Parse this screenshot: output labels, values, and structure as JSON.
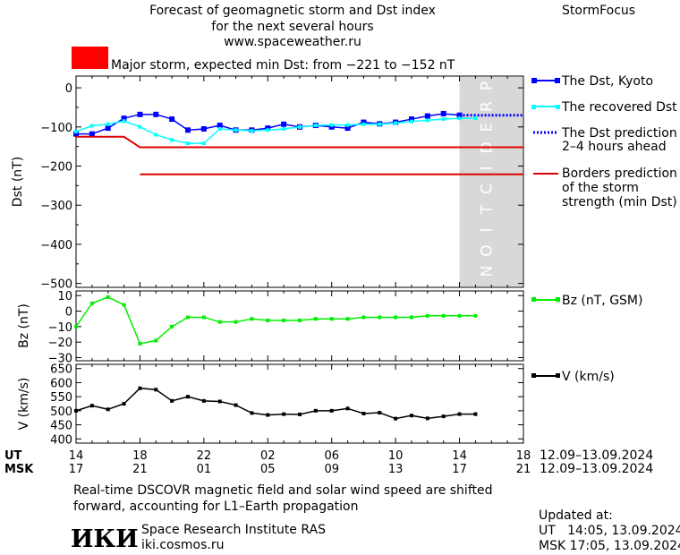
{
  "header": {
    "title_lines": [
      "Forecast of geomagnetic storm and Dst index",
      "for the next several hours",
      "www.spaceweather.ru"
    ],
    "brand": "StormFocus"
  },
  "storm_banner": {
    "color": "#ff0000",
    "text": "Major storm, expected min Dst: from −221 to −152 nT"
  },
  "colors": {
    "dst_kyoto": "#0000ff",
    "dst_recovered": "#00ffff",
    "dst_prediction": "#0000ff",
    "borders": "#e00000",
    "bz": "#00ee00",
    "v": "#000000",
    "prediction_band": "#d8d8d8"
  },
  "legend": {
    "dst_kyoto": "The Dst, Kyoto",
    "dst_recovered": "The recovered Dst",
    "dst_prediction": [
      "The Dst prediction",
      "2–4 hours ahead"
    ],
    "borders": [
      "Borders prediction",
      "of the storm",
      "strength (min Dst)"
    ],
    "bz": "Bz (nT, GSM)",
    "v": "V (km/s)"
  },
  "prediction_label": "PREDICTION",
  "axes": {
    "x_ut_label": "UT",
    "x_msk_label": "MSK",
    "x_ut_ticks": [
      "14",
      "18",
      "22",
      "02",
      "06",
      "10",
      "14",
      "18"
    ],
    "x_msk_ticks": [
      "17",
      "21",
      "01",
      "05",
      "09",
      "13",
      "17",
      "21"
    ],
    "date_range": "12.09–13.09.2024"
  },
  "chart_data": [
    {
      "type": "line",
      "panel": "dst",
      "ylabel": "Dst (nT)",
      "ylim": [
        -510,
        30
      ],
      "yticks": [
        0,
        -100,
        -200,
        -300,
        -400,
        -500
      ],
      "xlim": [
        14,
        42
      ],
      "x_unit": "hours UT from 14:00 12.09.2024",
      "prediction_start": 38,
      "series": [
        {
          "name": "The Dst, Kyoto",
          "x": [
            14,
            15,
            16,
            17,
            18,
            19,
            20,
            21,
            22,
            23,
            24,
            25,
            26,
            27,
            28,
            29,
            30,
            31,
            32,
            33,
            34,
            35,
            36,
            37,
            38
          ],
          "values": [
            -118,
            -118,
            -103,
            -78,
            -68,
            -68,
            -80,
            -108,
            -105,
            -96,
            -108,
            -108,
            -103,
            -93,
            -100,
            -96,
            -100,
            -103,
            -88,
            -92,
            -88,
            -80,
            -72,
            -66,
            -70
          ]
        },
        {
          "name": "The recovered Dst",
          "x": [
            14,
            15,
            16,
            17,
            18,
            19,
            20,
            21,
            22,
            23,
            24,
            25,
            26,
            27,
            28,
            29,
            30,
            31,
            32,
            33,
            34,
            35,
            36,
            37,
            38,
            39
          ],
          "values": [
            -112,
            -97,
            -93,
            -85,
            -100,
            -120,
            -133,
            -142,
            -142,
            -105,
            -108,
            -110,
            -108,
            -105,
            -100,
            -96,
            -95,
            -95,
            -93,
            -93,
            -90,
            -86,
            -83,
            -80,
            -78,
            -78
          ]
        },
        {
          "name": "The Dst prediction 2–4 hours ahead",
          "x": [
            38,
            42
          ],
          "values": [
            -70,
            -70
          ]
        },
        {
          "name": "Borders prediction (upper)",
          "x": [
            14,
            17,
            18,
            42
          ],
          "values": [
            -125,
            -125,
            -152,
            -152
          ]
        },
        {
          "name": "Borders prediction (lower)",
          "x": [
            18,
            42
          ],
          "values": [
            -221,
            -221
          ]
        }
      ]
    },
    {
      "type": "line",
      "panel": "bz",
      "ylabel": "Bz (nT)",
      "ylim": [
        -32,
        13
      ],
      "yticks": [
        10,
        0,
        -10,
        -20,
        -30
      ],
      "xlim": [
        14,
        42
      ],
      "series": [
        {
          "name": "Bz (nT, GSM)",
          "x": [
            14,
            15,
            16,
            17,
            18,
            19,
            20,
            21,
            22,
            23,
            24,
            25,
            26,
            27,
            28,
            29,
            30,
            31,
            32,
            33,
            34,
            35,
            36,
            37,
            38,
            39
          ],
          "values": [
            -10,
            5,
            9,
            4,
            -21,
            -19,
            -10,
            -4,
            -4,
            -7,
            -7,
            -5,
            -6,
            -6,
            -6,
            -5,
            -5,
            -5,
            -4,
            -4,
            -4,
            -4,
            -3,
            -3,
            -3,
            -3
          ]
        }
      ]
    },
    {
      "type": "line",
      "panel": "v",
      "ylabel": "V (km/s)",
      "ylim": [
        385,
        665
      ],
      "yticks": [
        650,
        600,
        550,
        500,
        450,
        400
      ],
      "xlim": [
        14,
        42
      ],
      "series": [
        {
          "name": "V (km/s)",
          "x": [
            14,
            15,
            16,
            17,
            18,
            19,
            20,
            21,
            22,
            23,
            24,
            25,
            26,
            27,
            28,
            29,
            30,
            31,
            32,
            33,
            34,
            35,
            36,
            37,
            38,
            39
          ],
          "values": [
            500,
            518,
            505,
            525,
            580,
            575,
            535,
            550,
            535,
            533,
            520,
            492,
            485,
            488,
            487,
            500,
            500,
            508,
            490,
            493,
            472,
            483,
            473,
            480,
            488,
            488
          ]
        }
      ]
    }
  ],
  "notes": {
    "line1": "Real-time DSCOVR magnetic field and solar wind speed are shifted",
    "line2": "forward, accounting for L1–Earth propagation"
  },
  "institute": {
    "logo": "ИКИ",
    "name": "Space Research Institute RAS",
    "url": "iki.cosmos.ru"
  },
  "updated": {
    "label": "Updated at:",
    "ut": "UT   14:05, 13.09.2024",
    "msk": "MSK 17:05, 13.09.2024"
  }
}
